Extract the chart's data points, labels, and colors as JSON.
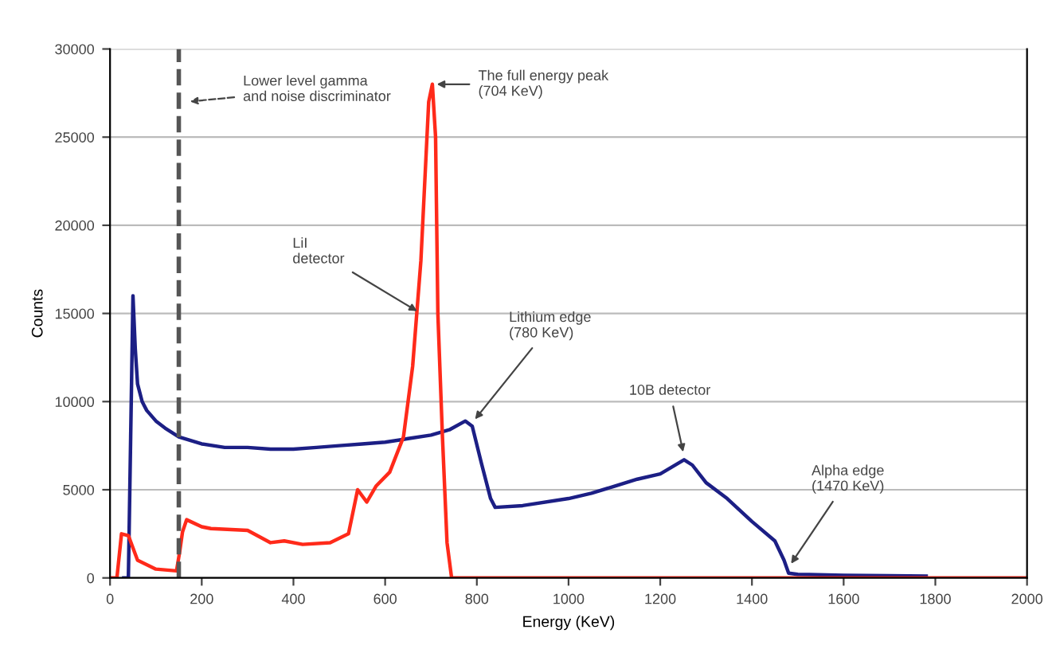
{
  "chart_data": {
    "type": "line",
    "xlabel": "Energy (KeV)",
    "ylabel": "Counts",
    "xlim": [
      0,
      2000
    ],
    "xticks": [
      0,
      200,
      400,
      600,
      800,
      1000,
      1200,
      1400,
      1600,
      1800,
      2000
    ],
    "ylim": [
      0,
      30000
    ],
    "yticks": [
      0,
      5000,
      10000,
      15000,
      20000,
      25000,
      30000
    ],
    "grid": "y",
    "legend": false,
    "marker": "none",
    "line_style": "solid",
    "series": [
      {
        "color": "#1c1f85",
        "x": [
          30,
          40,
          45,
          50,
          55,
          60,
          70,
          80,
          100,
          120,
          150,
          200,
          250,
          300,
          350,
          400,
          450,
          500,
          550,
          600,
          650,
          700,
          740,
          775,
          790,
          810,
          830,
          840,
          900,
          1000,
          1050,
          1100,
          1150,
          1200,
          1252,
          1270,
          1300,
          1346,
          1400,
          1450,
          1470,
          1480,
          1500,
          1600,
          1700,
          1780
        ],
        "values": [
          0,
          0,
          8000,
          16000,
          13000,
          11000,
          10000,
          9500,
          8900,
          8500,
          8000,
          7600,
          7400,
          7400,
          7300,
          7300,
          7400,
          7500,
          7600,
          7700,
          7900,
          8100,
          8400,
          8900,
          8600,
          6500,
          4500,
          4000,
          4100,
          4500,
          4800,
          5200,
          5600,
          5900,
          6700,
          6400,
          5400,
          4500,
          3200,
          2100,
          1000,
          270,
          200,
          150,
          120,
          100
        ]
      },
      {
        "color": "#ff2a1a",
        "x": [
          0,
          15,
          25,
          40,
          60,
          100,
          145,
          152,
          158,
          167,
          200,
          220,
          300,
          350,
          380,
          420,
          480,
          520,
          540,
          560,
          580,
          610,
          640,
          660,
          678,
          695,
          703,
          710,
          715,
          725,
          735,
          745,
          800,
          1000,
          1500,
          2000
        ],
        "values": [
          0,
          0,
          2500,
          2400,
          1000,
          500,
          400,
          1500,
          2600,
          3300,
          2900,
          2800,
          2700,
          2000,
          2100,
          1900,
          2000,
          2500,
          5000,
          4300,
          5200,
          6000,
          8000,
          12000,
          18000,
          27000,
          28000,
          25000,
          15000,
          8000,
          2000,
          0,
          0,
          0,
          0,
          0
        ]
      }
    ],
    "ref_lines": [
      {
        "axis": "x",
        "value": 150,
        "label": "Lower level gamma\nand noise discriminator",
        "color": "#555555",
        "line_style": "dashed"
      }
    ],
    "annotations": [
      {
        "text": "The full energy peak\n(704 KeV)",
        "x": 703,
        "y": 28000
      },
      {
        "text": "LiI\ndetector",
        "x": 678,
        "y": 15000
      },
      {
        "text": "Lithium edge\n(780 KeV)",
        "x": 790,
        "y": 8800
      },
      {
        "text": "10B detector",
        "x": 1252,
        "y": 6900
      },
      {
        "text": "Alpha edge\n(1470 KeV)",
        "x": 1480,
        "y": 600
      }
    ]
  }
}
